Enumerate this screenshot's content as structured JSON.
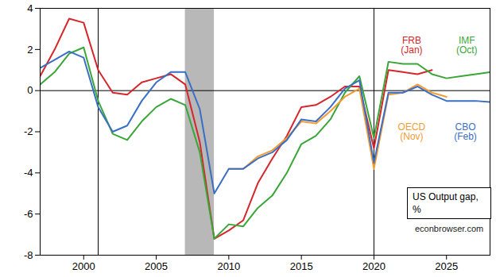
{
  "chart_data": {
    "type": "line",
    "x": [
      1997,
      1998,
      1999,
      2000,
      2001,
      2002,
      2003,
      2004,
      2005,
      2006,
      2007,
      2008,
      2009,
      2010,
      2011,
      2012,
      2013,
      2014,
      2015,
      2016,
      2017,
      2018,
      2019,
      2020,
      2021,
      2022,
      2023,
      2024,
      2025,
      2026,
      2027,
      2028
    ],
    "series": [
      {
        "name": "FRB\n(Jan)",
        "color": "#d6262b",
        "values": [
          0.7,
          2.0,
          3.5,
          3.3,
          1.0,
          -0.1,
          -0.2,
          0.4,
          0.6,
          0.8,
          0.3,
          -2.5,
          -7.2,
          -6.8,
          -6.3,
          -4.5,
          -3.3,
          -2.2,
          -0.8,
          -0.7,
          -0.3,
          0.2,
          0.2,
          -2.8,
          1.0,
          0.9,
          0.8,
          1.0,
          null,
          null,
          null,
          null
        ]
      },
      {
        "name": "IMF\n(Oct)",
        "color": "#3aa63a",
        "values": [
          0.3,
          0.9,
          1.8,
          2.1,
          -0.5,
          -2.1,
          -2.4,
          -1.5,
          -0.8,
          -0.4,
          -0.7,
          -3.0,
          -7.2,
          -6.5,
          -6.6,
          -5.7,
          -5.1,
          -4.0,
          -2.6,
          -2.2,
          -1.4,
          -0.1,
          0.7,
          -2.3,
          1.4,
          1.3,
          1.3,
          0.8,
          0.6,
          0.7,
          0.8,
          0.9
        ]
      },
      {
        "name": "OECD\n(Nov)",
        "color": "#f39c32",
        "values": [
          null,
          null,
          null,
          null,
          null,
          null,
          null,
          null,
          null,
          null,
          null,
          null,
          null,
          -3.8,
          -3.8,
          -3.2,
          -2.9,
          -2.3,
          -1.5,
          -1.6,
          -1.0,
          -0.3,
          0.1,
          -3.8,
          -0.2,
          -0.1,
          0.3,
          -0.1,
          -0.3,
          null,
          null,
          null
        ]
      },
      {
        "name": "CBO\n(Feb)",
        "color": "#3a6fc4",
        "values": [
          1.1,
          1.5,
          1.9,
          1.6,
          -0.8,
          -2.0,
          -1.7,
          -0.5,
          0.4,
          0.9,
          0.9,
          -0.9,
          -5.0,
          -3.8,
          -3.8,
          -3.3,
          -3.0,
          -2.4,
          -1.4,
          -1.5,
          -0.8,
          0.1,
          0.5,
          -3.5,
          -0.1,
          -0.1,
          0.2,
          -0.2,
          -0.5,
          -0.5,
          -0.5,
          -0.55
        ]
      }
    ],
    "xlim": [
      1997,
      2028
    ],
    "xticks": [
      2000,
      2005,
      2010,
      2015,
      2020,
      2025
    ],
    "ylim": [
      -8,
      4
    ],
    "yticks": [
      -8,
      -6,
      -4,
      -2,
      0,
      2,
      4
    ],
    "shaded": [
      [
        2007,
        2009
      ]
    ],
    "vlines": [
      2001,
      2020
    ],
    "hlines": [
      0
    ],
    "grid": false,
    "annotations": [
      {
        "text": "US Output gap, %"
      },
      {
        "text": "econbrowser.com"
      }
    ]
  }
}
